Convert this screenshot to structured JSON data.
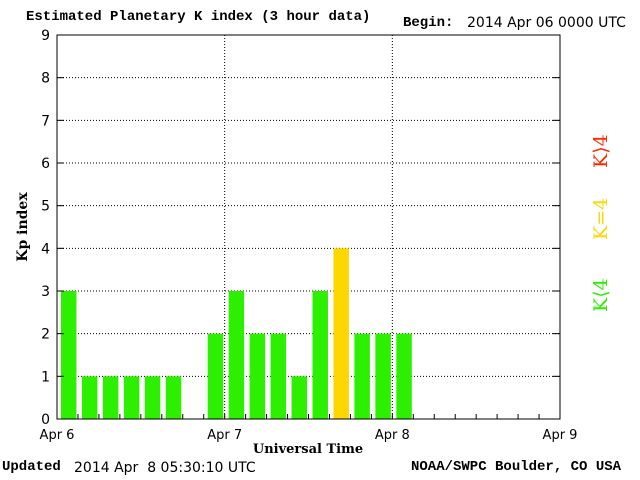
{
  "header": {
    "title": "Estimated Planetary K index (3 hour data)",
    "begin_label": "Begin:",
    "begin_value": "2014 Apr 06 0000 UTC"
  },
  "footer": {
    "updated_label": "Updated",
    "updated_value": "2014 Apr  8 05:30:10 UTC",
    "source": "NOAA/SWPC Boulder, CO USA"
  },
  "legend": {
    "below": "K⟨4",
    "equal": "K=4",
    "above": "K⟩4",
    "colors": {
      "below": "#2cf000",
      "equal": "#ffd700",
      "above": "#ff2a00"
    }
  },
  "chart_data": {
    "type": "bar",
    "ylabel": "Kp index",
    "xlabel": "Universal Time",
    "ylim": [
      0,
      9
    ],
    "yticks": [
      "0",
      "1",
      "2",
      "3",
      "4",
      "5",
      "6",
      "7",
      "8",
      "9"
    ],
    "xticks": [
      "Apr 6",
      "Apr 7",
      "Apr 8",
      "Apr 9"
    ],
    "grid": true,
    "bar_slots": 24,
    "values": [
      3,
      1,
      1,
      1,
      1,
      1,
      null,
      2,
      3,
      2,
      2,
      1,
      3,
      4,
      2,
      2,
      2
    ]
  }
}
